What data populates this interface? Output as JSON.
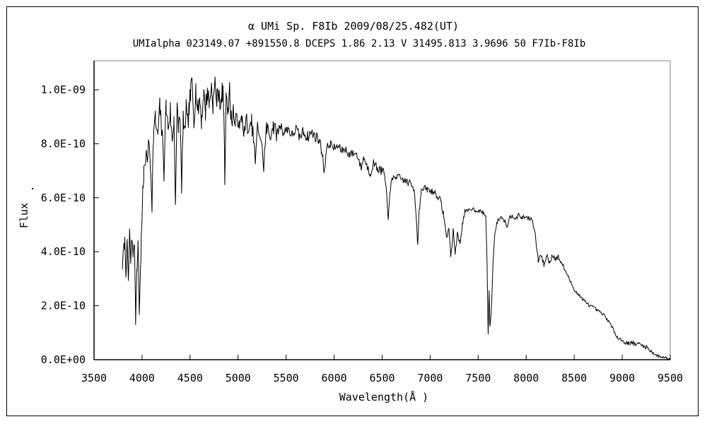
{
  "colors": {
    "background": "#ffffff",
    "outer_border": "#000000",
    "plot_frame": "#808080",
    "axis": "#000000",
    "line": "#000000",
    "text": "#000000"
  },
  "chart_data": {
    "type": "line",
    "title": "α UMi  Sp. F8Ib  2009/08/25.482(UT)",
    "subtitle": "UMIalpha 023149.07 +891550.8 DCEPS 1.86 2.13 V 31495.813 3.9696 50 F7Ib-F8Ib",
    "xlabel": "Wavelength(Å )",
    "ylabel": "Flux",
    "xlim": [
      3500,
      9500
    ],
    "ylim": [
      0,
      1.07e-09
    ],
    "grid": false,
    "legend": "none",
    "x_ticks": [
      3500,
      4000,
      4500,
      5000,
      5500,
      6000,
      6500,
      7000,
      7500,
      8000,
      8500,
      9000,
      9500
    ],
    "x_tick_labels": [
      "3500",
      "4000",
      "4500",
      "5000",
      "5500",
      "6000",
      "6500",
      "7000",
      "7500",
      "8000",
      "8500",
      "9000",
      "9500"
    ],
    "y_ticks_flux_1e10": [
      0,
      2,
      4,
      6,
      8,
      10
    ],
    "y_tick_labels": [
      "0.0E+00",
      "2.0E-10",
      "4.0E-10",
      "6.0E-10",
      "8.0E-10",
      "1.0E-09"
    ],
    "flux_scale": 1e-10,
    "series": [
      {
        "name": "alpha UMi spectrum flux",
        "points": [
          [
            3795,
            3.5
          ],
          [
            3808,
            4.0
          ],
          [
            3820,
            4.35
          ],
          [
            3832,
            3.3
          ],
          [
            3845,
            4.2
          ],
          [
            3858,
            2.95
          ],
          [
            3870,
            4.7
          ],
          [
            3882,
            3.6
          ],
          [
            3895,
            4.5
          ],
          [
            3910,
            3.9
          ],
          [
            3922,
            4.3
          ],
          [
            3933,
            1.5
          ],
          [
            3946,
            3.4
          ],
          [
            3958,
            4.35
          ],
          [
            3971,
            1.9
          ],
          [
            3984,
            3.2
          ],
          [
            3992,
            4.6
          ],
          [
            4000,
            5.3
          ],
          [
            4008,
            6.3
          ],
          [
            4018,
            6.9
          ],
          [
            4035,
            7.3
          ],
          [
            4055,
            7.6
          ],
          [
            4075,
            7.9
          ],
          [
            4088,
            7.2
          ],
          [
            4104,
            5.9
          ],
          [
            4120,
            8.4
          ],
          [
            4140,
            8.9
          ],
          [
            4160,
            8.2
          ],
          [
            4185,
            9.3
          ],
          [
            4205,
            8.5
          ],
          [
            4228,
            7.0
          ],
          [
            4250,
            9.4
          ],
          [
            4270,
            8.6
          ],
          [
            4295,
            9.2
          ],
          [
            4315,
            7.9
          ],
          [
            4332,
            9.0
          ],
          [
            4348,
            5.9
          ],
          [
            4365,
            9.2
          ],
          [
            4380,
            8.6
          ],
          [
            4395,
            9.3
          ],
          [
            4412,
            6.1
          ],
          [
            4428,
            9.0
          ],
          [
            4442,
            8.2
          ],
          [
            4458,
            9.4
          ],
          [
            4472,
            8.6
          ],
          [
            4488,
            9.2
          ],
          [
            4505,
            9.8
          ],
          [
            4520,
            10.3
          ],
          [
            4540,
            9.0
          ],
          [
            4560,
            10.0
          ],
          [
            4580,
            9.2
          ],
          [
            4600,
            9.7
          ],
          [
            4620,
            8.9
          ],
          [
            4640,
            9.9
          ],
          [
            4660,
            9.2
          ],
          [
            4680,
            10.0
          ],
          [
            4700,
            9.4
          ],
          [
            4720,
            10.2
          ],
          [
            4740,
            9.5
          ],
          [
            4760,
            10.25
          ],
          [
            4780,
            9.6
          ],
          [
            4800,
            10.1
          ],
          [
            4820,
            9.3
          ],
          [
            4838,
            10.0
          ],
          [
            4852,
            9.2
          ],
          [
            4861,
            6.7
          ],
          [
            4878,
            10.1
          ],
          [
            4895,
            9.3
          ],
          [
            4912,
            9.9
          ],
          [
            4930,
            8.9
          ],
          [
            4950,
            9.3
          ],
          [
            4970,
            8.6
          ],
          [
            4990,
            9.1
          ],
          [
            5015,
            8.5
          ],
          [
            5040,
            9.0
          ],
          [
            5065,
            8.4
          ],
          [
            5090,
            8.9
          ],
          [
            5115,
            8.3
          ],
          [
            5140,
            8.8
          ],
          [
            5160,
            8.2
          ],
          [
            5179,
            7.3
          ],
          [
            5205,
            8.7
          ],
          [
            5235,
            8.2
          ],
          [
            5267,
            7.2
          ],
          [
            5295,
            8.6
          ],
          [
            5330,
            8.3
          ],
          [
            5365,
            8.7
          ],
          [
            5400,
            8.3
          ],
          [
            5440,
            8.7
          ],
          [
            5480,
            8.4
          ],
          [
            5520,
            8.6
          ],
          [
            5560,
            8.3
          ],
          [
            5600,
            8.55
          ],
          [
            5640,
            8.25
          ],
          [
            5680,
            8.45
          ],
          [
            5720,
            8.25
          ],
          [
            5760,
            8.4
          ],
          [
            5800,
            8.3
          ],
          [
            5840,
            8.15
          ],
          [
            5870,
            7.8
          ],
          [
            5895,
            7.0
          ],
          [
            5925,
            7.85
          ],
          [
            5960,
            8.0
          ],
          [
            6000,
            7.85
          ],
          [
            6040,
            7.9
          ],
          [
            6080,
            7.75
          ],
          [
            6120,
            7.8
          ],
          [
            6160,
            7.6
          ],
          [
            6200,
            7.65
          ],
          [
            6240,
            7.6
          ],
          [
            6280,
            7.1
          ],
          [
            6310,
            7.5
          ],
          [
            6340,
            7.2
          ],
          [
            6375,
            6.9
          ],
          [
            6410,
            7.3
          ],
          [
            6450,
            7.1
          ],
          [
            6490,
            7.0
          ],
          [
            6520,
            6.95
          ],
          [
            6542,
            6.3
          ],
          [
            6563,
            5.1
          ],
          [
            6580,
            6.3
          ],
          [
            6605,
            6.65
          ],
          [
            6640,
            6.8
          ],
          [
            6680,
            6.75
          ],
          [
            6720,
            6.65
          ],
          [
            6760,
            6.6
          ],
          [
            6800,
            6.5
          ],
          [
            6835,
            6.3
          ],
          [
            6858,
            5.2
          ],
          [
            6870,
            4.2
          ],
          [
            6885,
            5.5
          ],
          [
            6905,
            6.2
          ],
          [
            6935,
            6.35
          ],
          [
            6970,
            6.3
          ],
          [
            7005,
            6.25
          ],
          [
            7040,
            6.2
          ],
          [
            7075,
            6.1
          ],
          [
            7110,
            5.85
          ],
          [
            7140,
            5.4
          ],
          [
            7170,
            4.5
          ],
          [
            7195,
            4.9
          ],
          [
            7215,
            3.8
          ],
          [
            7240,
            4.8
          ],
          [
            7260,
            3.95
          ],
          [
            7285,
            4.7
          ],
          [
            7310,
            4.3
          ],
          [
            7335,
            5.0
          ],
          [
            7360,
            5.45
          ],
          [
            7390,
            5.5
          ],
          [
            7430,
            5.6
          ],
          [
            7470,
            5.55
          ],
          [
            7510,
            5.5
          ],
          [
            7550,
            5.45
          ],
          [
            7580,
            5.3
          ],
          [
            7593,
            3.5
          ],
          [
            7604,
            0.9
          ],
          [
            7614,
            2.6
          ],
          [
            7622,
            1.2
          ],
          [
            7638,
            1.9
          ],
          [
            7655,
            3.6
          ],
          [
            7672,
            4.6
          ],
          [
            7692,
            5.05
          ],
          [
            7715,
            5.2
          ],
          [
            7745,
            5.3
          ],
          [
            7775,
            5.15
          ],
          [
            7800,
            4.95
          ],
          [
            7825,
            5.25
          ],
          [
            7855,
            5.35
          ],
          [
            7890,
            5.25
          ],
          [
            7925,
            5.35
          ],
          [
            7960,
            5.25
          ],
          [
            7995,
            5.3
          ],
          [
            8030,
            5.25
          ],
          [
            8065,
            5.15
          ],
          [
            8095,
            4.6
          ],
          [
            8125,
            3.65
          ],
          [
            8155,
            3.9
          ],
          [
            8185,
            3.5
          ],
          [
            8215,
            3.85
          ],
          [
            8245,
            3.6
          ],
          [
            8275,
            3.9
          ],
          [
            8305,
            3.75
          ],
          [
            8335,
            3.8
          ],
          [
            8365,
            3.6
          ],
          [
            8400,
            3.35
          ],
          [
            8440,
            3.05
          ],
          [
            8480,
            2.75
          ],
          [
            8520,
            2.5
          ],
          [
            8560,
            2.35
          ],
          [
            8600,
            2.2
          ],
          [
            8645,
            2.05
          ],
          [
            8690,
            1.95
          ],
          [
            8730,
            1.85
          ],
          [
            8770,
            1.75
          ],
          [
            8810,
            1.65
          ],
          [
            8845,
            1.5
          ],
          [
            8880,
            1.3
          ],
          [
            8915,
            1.05
          ],
          [
            8950,
            0.85
          ],
          [
            8985,
            0.75
          ],
          [
            9020,
            0.65
          ],
          [
            9060,
            0.6
          ],
          [
            9100,
            0.65
          ],
          [
            9140,
            0.55
          ],
          [
            9180,
            0.6
          ],
          [
            9220,
            0.5
          ],
          [
            9260,
            0.45
          ],
          [
            9300,
            0.32
          ],
          [
            9340,
            0.2
          ],
          [
            9380,
            0.12
          ],
          [
            9420,
            0.1
          ],
          [
            9460,
            0.07
          ],
          [
            9500,
            0.03
          ]
        ]
      }
    ],
    "noise": {
      "seed": 7,
      "segments_from_amp_1e10": [
        [
          3795,
          0.28
        ],
        [
          3995,
          0.35
        ],
        [
          4050,
          0.45
        ],
        [
          4950,
          0.32
        ],
        [
          5400,
          0.22
        ],
        [
          5900,
          0.16
        ],
        [
          6590,
          0.13
        ],
        [
          6900,
          0.13
        ],
        [
          7140,
          0.1
        ],
        [
          7380,
          0.08
        ],
        [
          7588,
          0.04
        ],
        [
          7660,
          0.05
        ],
        [
          7700,
          0.08
        ],
        [
          8090,
          0.1
        ],
        [
          8400,
          0.07
        ],
        [
          8560,
          0.06
        ],
        [
          8950,
          0.07
        ],
        [
          9350,
          0.05
        ]
      ]
    }
  }
}
